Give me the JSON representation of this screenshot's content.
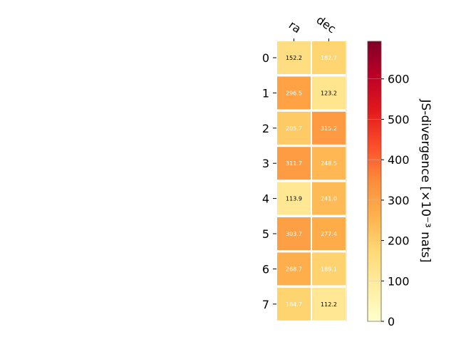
{
  "chart_data": {
    "type": "heatmap",
    "columns": [
      "ra",
      "dec"
    ],
    "rows": [
      "0",
      "1",
      "2",
      "3",
      "4",
      "5",
      "6",
      "7"
    ],
    "values": [
      [
        152.2,
        182.7
      ],
      [
        296.5,
        123.2
      ],
      [
        205.7,
        315.2
      ],
      [
        311.7,
        248.5
      ],
      [
        113.9,
        241.0
      ],
      [
        303.7,
        277.4
      ],
      [
        268.7,
        189.1
      ],
      [
        184.7,
        112.2
      ]
    ],
    "value_labels": [
      [
        "152.2",
        "182.7"
      ],
      [
        "296.5",
        "123.2"
      ],
      [
        "205.7",
        "315.2"
      ],
      [
        "311.7",
        "248.5"
      ],
      [
        "113.9",
        "241.0"
      ],
      [
        "303.7",
        "277.4"
      ],
      [
        "268.7",
        "189.1"
      ],
      [
        "184.7",
        "112.2"
      ]
    ],
    "colorbar": {
      "label": "JS-divergence [×10⁻³ nats]",
      "range": [
        0,
        693
      ],
      "ticks": [
        "0",
        "100",
        "200",
        "300",
        "400",
        "500",
        "600"
      ],
      "colormap": "YlOrRd"
    }
  }
}
